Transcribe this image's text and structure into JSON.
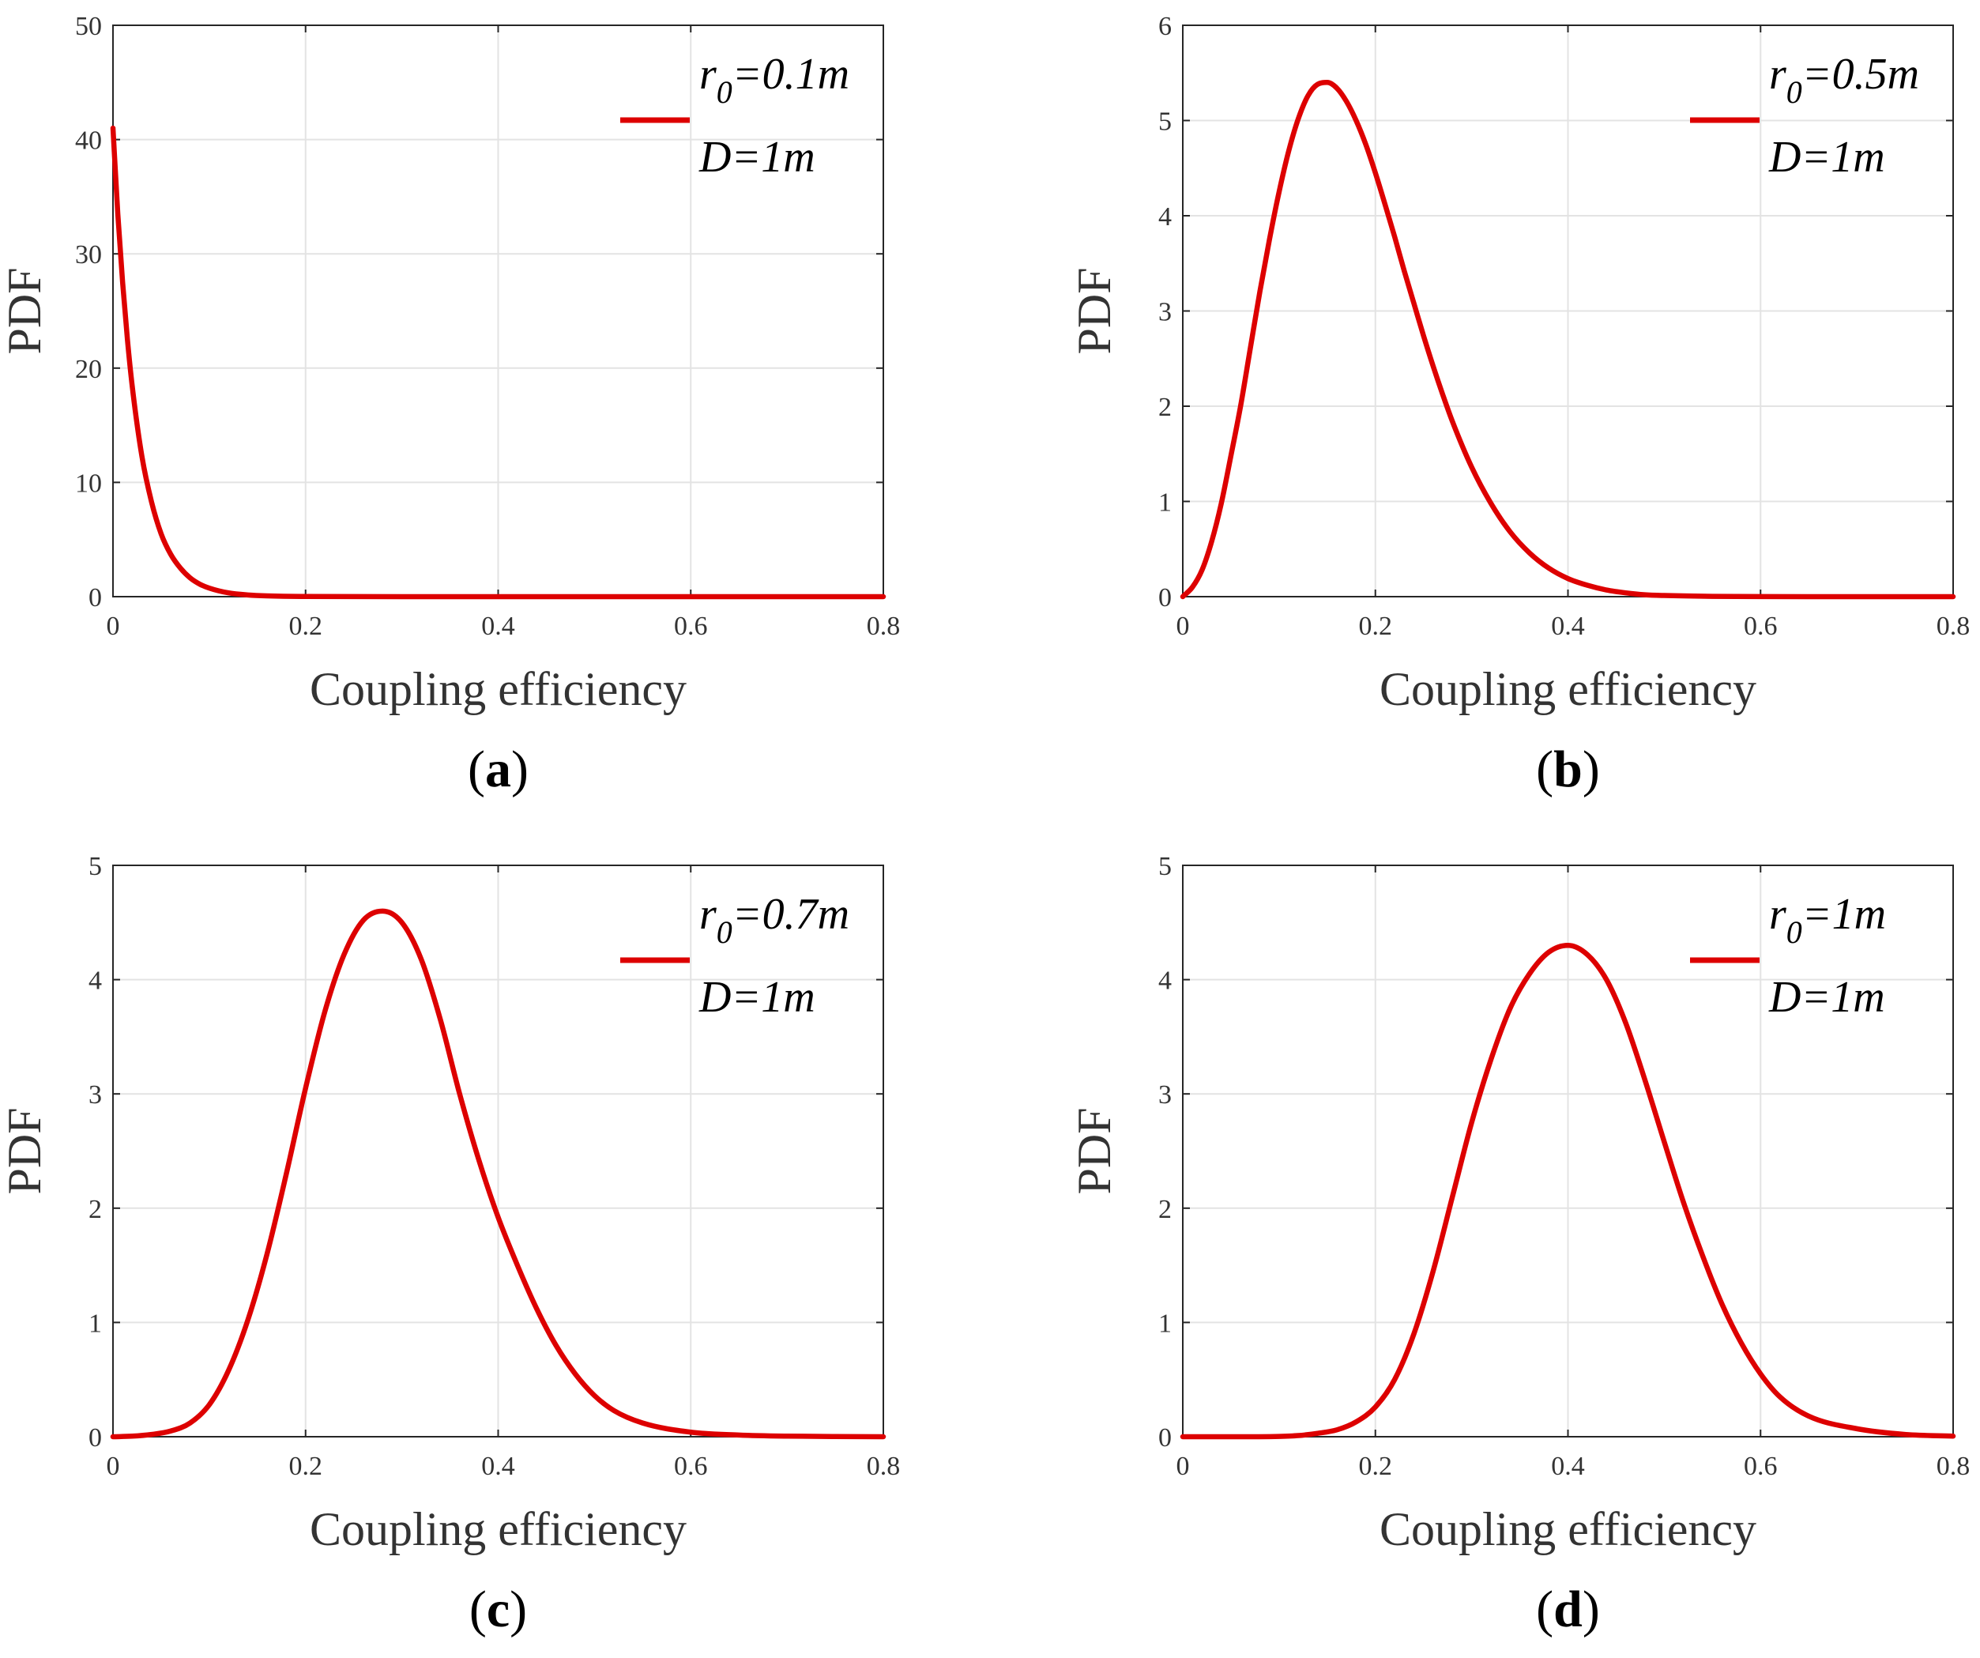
{
  "chart_data": [
    {
      "type": "line",
      "panel_label": "a",
      "xlabel": "Coupling efficiency",
      "ylabel": "PDF",
      "xlim": [
        0,
        0.8
      ],
      "ylim": [
        0,
        50
      ],
      "xticks": [
        "0",
        "0.2",
        "0.4",
        "0.6",
        "0.8"
      ],
      "yticks": [
        "0",
        "10",
        "20",
        "30",
        "40",
        "50"
      ],
      "grid": true,
      "legend": {
        "placement": "top-right",
        "r_text": "r",
        "r_sub": "0",
        "r_value": "=0.1m",
        "d_text": "D=1m"
      },
      "series": [
        {
          "name": "r0=0.1m, D=1m",
          "color": "#dd0000",
          "x": [
            0,
            0.005,
            0.01,
            0.015,
            0.02,
            0.03,
            0.04,
            0.05,
            0.06,
            0.07,
            0.08,
            0.09,
            0.1,
            0.12,
            0.14,
            0.16,
            0.2,
            0.3,
            0.4,
            0.5,
            0.6,
            0.7,
            0.8
          ],
          "y": [
            41,
            33.5,
            27.5,
            22.5,
            18.4,
            12.3,
            8.3,
            5.5,
            3.7,
            2.5,
            1.65,
            1.1,
            0.75,
            0.33,
            0.15,
            0.07,
            0.015,
            0,
            0,
            0,
            0,
            0,
            0
          ]
        }
      ]
    },
    {
      "type": "line",
      "panel_label": "b",
      "xlabel": "Coupling efficiency",
      "ylabel": "PDF",
      "xlim": [
        0,
        0.8
      ],
      "ylim": [
        0,
        6
      ],
      "xticks": [
        "0",
        "0.2",
        "0.4",
        "0.6",
        "0.8"
      ],
      "yticks": [
        "0",
        "1",
        "2",
        "3",
        "4",
        "5",
        "6"
      ],
      "grid": true,
      "legend": {
        "placement": "top-right",
        "r_text": "r",
        "r_sub": "0",
        "r_value": "=0.5m",
        "d_text": "D=1m"
      },
      "series": [
        {
          "name": "r0=0.5m, D=1m",
          "color": "#dd0000",
          "x": [
            0,
            0.01,
            0.02,
            0.03,
            0.04,
            0.05,
            0.06,
            0.07,
            0.08,
            0.09,
            0.1,
            0.11,
            0.12,
            0.13,
            0.14,
            0.15,
            0.16,
            0.17,
            0.18,
            0.19,
            0.2,
            0.21,
            0.22,
            0.23,
            0.24,
            0.25,
            0.26,
            0.27,
            0.28,
            0.3,
            0.32,
            0.34,
            0.36,
            0.38,
            0.4,
            0.42,
            0.44,
            0.46,
            0.48,
            0.5,
            0.55,
            0.6,
            0.7,
            0.8
          ],
          "y": [
            0,
            0.1,
            0.28,
            0.58,
            0.98,
            1.48,
            2.0,
            2.6,
            3.2,
            3.75,
            4.25,
            4.68,
            5.02,
            5.26,
            5.38,
            5.4,
            5.34,
            5.2,
            5.0,
            4.75,
            4.45,
            4.12,
            3.78,
            3.42,
            3.08,
            2.74,
            2.42,
            2.12,
            1.84,
            1.36,
            0.98,
            0.68,
            0.46,
            0.3,
            0.19,
            0.12,
            0.07,
            0.04,
            0.02,
            0.012,
            0.003,
            0.001,
            0,
            0
          ]
        }
      ]
    },
    {
      "type": "line",
      "panel_label": "c",
      "xlabel": "Coupling efficiency",
      "ylabel": "PDF",
      "xlim": [
        0,
        0.8
      ],
      "ylim": [
        0,
        5
      ],
      "xticks": [
        "0",
        "0.2",
        "0.4",
        "0.6",
        "0.8"
      ],
      "yticks": [
        "0",
        "1",
        "2",
        "3",
        "4",
        "5"
      ],
      "grid": true,
      "legend": {
        "placement": "top-right",
        "r_text": "r",
        "r_sub": "0",
        "r_value": "=0.7m",
        "d_text": "D=1m"
      },
      "series": [
        {
          "name": "r0=0.7m, D=1m",
          "color": "#dd0000",
          "x": [
            0,
            0.02,
            0.04,
            0.06,
            0.08,
            0.1,
            0.12,
            0.14,
            0.16,
            0.18,
            0.2,
            0.22,
            0.24,
            0.26,
            0.28,
            0.3,
            0.32,
            0.34,
            0.36,
            0.38,
            0.4,
            0.42,
            0.44,
            0.46,
            0.48,
            0.5,
            0.52,
            0.55,
            0.6,
            0.65,
            0.7,
            0.75,
            0.8
          ],
          "y": [
            0,
            0.005,
            0.02,
            0.05,
            0.12,
            0.28,
            0.58,
            1.02,
            1.6,
            2.3,
            3.05,
            3.72,
            4.22,
            4.52,
            4.6,
            4.5,
            4.18,
            3.65,
            3.0,
            2.42,
            1.92,
            1.5,
            1.12,
            0.8,
            0.55,
            0.36,
            0.23,
            0.12,
            0.04,
            0.015,
            0.005,
            0.002,
            0
          ]
        }
      ]
    },
    {
      "type": "line",
      "panel_label": "d",
      "xlabel": "Coupling efficiency",
      "ylabel": "PDF",
      "xlim": [
        0,
        0.8
      ],
      "ylim": [
        0,
        5
      ],
      "xticks": [
        "0",
        "0.2",
        "0.4",
        "0.6",
        "0.8"
      ],
      "yticks": [
        "0",
        "1",
        "2",
        "3",
        "4",
        "5"
      ],
      "grid": true,
      "legend": {
        "placement": "top-right",
        "r_text": "r",
        "r_sub": "0",
        "r_value": "=1m",
        "d_text": "D=1m"
      },
      "series": [
        {
          "name": "r0=1m, D=1m",
          "color": "#dd0000",
          "x": [
            0,
            0.05,
            0.1,
            0.12,
            0.14,
            0.16,
            0.18,
            0.2,
            0.22,
            0.24,
            0.26,
            0.28,
            0.3,
            0.32,
            0.34,
            0.36,
            0.38,
            0.4,
            0.42,
            0.44,
            0.46,
            0.48,
            0.5,
            0.52,
            0.54,
            0.56,
            0.58,
            0.6,
            0.62,
            0.65,
            0.7,
            0.75,
            0.8
          ],
          "y": [
            0,
            0,
            0.003,
            0.01,
            0.03,
            0.06,
            0.13,
            0.26,
            0.5,
            0.9,
            1.45,
            2.1,
            2.75,
            3.3,
            3.75,
            4.05,
            4.24,
            4.3,
            4.22,
            4.0,
            3.62,
            3.12,
            2.58,
            2.05,
            1.58,
            1.16,
            0.82,
            0.55,
            0.35,
            0.18,
            0.07,
            0.02,
            0.005
          ]
        }
      ]
    }
  ]
}
